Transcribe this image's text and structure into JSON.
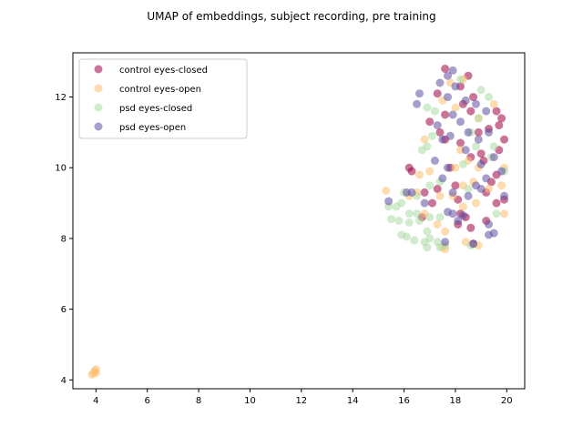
{
  "chart_data": {
    "type": "scatter",
    "title": "UMAP of embeddings, subject recording, pre training",
    "xlabel": "",
    "ylabel": "",
    "xlim": [
      3.1,
      20.7
    ],
    "ylim": [
      3.75,
      13.25
    ],
    "xticks": [
      4,
      6,
      8,
      10,
      12,
      14,
      16,
      18,
      20
    ],
    "yticks": [
      4,
      6,
      8,
      10,
      12
    ],
    "grid": false,
    "legend_position": "top-left",
    "series": [
      {
        "name": "control eyes-closed",
        "color": "#9e0142",
        "points": [
          [
            17.6,
            12.8
          ],
          [
            18.5,
            12.6
          ],
          [
            18.2,
            12.3
          ],
          [
            17.3,
            12.1
          ],
          [
            18.7,
            12.0
          ],
          [
            18.3,
            11.8
          ],
          [
            18.6,
            11.6
          ],
          [
            19.6,
            11.6
          ],
          [
            17.6,
            11.5
          ],
          [
            19.8,
            11.4
          ],
          [
            19.7,
            11.2
          ],
          [
            19.3,
            11.1
          ],
          [
            17.0,
            11.3
          ],
          [
            18.9,
            11.0
          ],
          [
            17.4,
            11.0
          ],
          [
            17.6,
            10.8
          ],
          [
            19.9,
            10.8
          ],
          [
            18.2,
            10.7
          ],
          [
            19.7,
            10.5
          ],
          [
            19.0,
            10.4
          ],
          [
            18.6,
            10.3
          ],
          [
            19.1,
            10.2
          ],
          [
            17.8,
            10.0
          ],
          [
            16.2,
            10.0
          ],
          [
            16.3,
            9.9
          ],
          [
            19.6,
            9.8
          ],
          [
            19.4,
            9.6
          ],
          [
            18.0,
            9.5
          ],
          [
            17.3,
            9.4
          ],
          [
            19.2,
            9.3
          ],
          [
            16.8,
            9.3
          ],
          [
            18.1,
            9.1
          ],
          [
            17.1,
            9.0
          ],
          [
            19.6,
            9.0
          ],
          [
            19.9,
            9.1
          ],
          [
            18.2,
            8.7
          ],
          [
            18.4,
            8.6
          ],
          [
            16.7,
            8.6
          ],
          [
            18.1,
            8.4
          ],
          [
            18.6,
            8.3
          ],
          [
            19.2,
            8.5
          ],
          [
            18.7,
            7.85
          ]
        ]
      },
      {
        "name": "control eyes-open",
        "color": "#fdbf6f",
        "points": [
          [
            3.9,
            4.2
          ],
          [
            4.0,
            4.3
          ],
          [
            3.95,
            4.25
          ],
          [
            3.85,
            4.15
          ],
          [
            4.0,
            4.2
          ],
          [
            18.3,
            12.5
          ],
          [
            17.8,
            12.4
          ],
          [
            17.5,
            11.9
          ],
          [
            19.5,
            11.8
          ],
          [
            18.0,
            11.7
          ],
          [
            18.9,
            11.4
          ],
          [
            16.8,
            10.8
          ],
          [
            18.2,
            10.5
          ],
          [
            18.5,
            10.2
          ],
          [
            18.9,
            10.0
          ],
          [
            18.0,
            10.0
          ],
          [
            17.0,
            9.9
          ],
          [
            16.6,
            9.8
          ],
          [
            18.7,
            9.6
          ],
          [
            18.3,
            9.5
          ],
          [
            17.9,
            9.2
          ],
          [
            17.4,
            9.2
          ],
          [
            16.5,
            9.3
          ],
          [
            16.2,
            9.2
          ],
          [
            15.3,
            9.35
          ],
          [
            19.8,
            9.5
          ],
          [
            19.9,
            10.0
          ],
          [
            19.3,
            9.4
          ],
          [
            18.8,
            9.0
          ],
          [
            18.3,
            8.9
          ],
          [
            19.9,
            8.7
          ],
          [
            16.8,
            8.7
          ],
          [
            17.3,
            8.4
          ],
          [
            17.6,
            8.2
          ],
          [
            18.4,
            7.9
          ],
          [
            18.9,
            7.8
          ],
          [
            17.5,
            7.75
          ],
          [
            17.6,
            7.7
          ]
        ]
      },
      {
        "name": "psd eyes-closed",
        "color": "#abdda4",
        "points": [
          [
            18.2,
            12.5
          ],
          [
            19.0,
            12.2
          ],
          [
            19.3,
            12.0
          ],
          [
            16.9,
            11.7
          ],
          [
            17.2,
            11.6
          ],
          [
            18.9,
            11.4
          ],
          [
            18.6,
            11.0
          ],
          [
            17.1,
            10.9
          ],
          [
            18.8,
            10.6
          ],
          [
            16.9,
            10.6
          ],
          [
            19.5,
            10.6
          ],
          [
            16.7,
            10.5
          ],
          [
            19.4,
            10.3
          ],
          [
            18.3,
            10.1
          ],
          [
            19.9,
            9.9
          ],
          [
            17.4,
            9.6
          ],
          [
            17.0,
            9.5
          ],
          [
            18.5,
            9.4
          ],
          [
            16.0,
            9.3
          ],
          [
            16.5,
            9.2
          ],
          [
            15.9,
            9.0
          ],
          [
            15.4,
            8.9
          ],
          [
            15.7,
            8.9
          ],
          [
            16.2,
            8.7
          ],
          [
            16.5,
            8.7
          ],
          [
            17.4,
            8.6
          ],
          [
            17.0,
            8.6
          ],
          [
            16.6,
            8.5
          ],
          [
            15.5,
            8.55
          ],
          [
            15.8,
            8.5
          ],
          [
            16.2,
            8.45
          ],
          [
            19.6,
            8.7
          ],
          [
            16.9,
            8.2
          ],
          [
            17.0,
            8.0
          ],
          [
            16.8,
            7.9
          ],
          [
            17.3,
            7.9
          ],
          [
            17.6,
            7.8
          ],
          [
            16.4,
            7.95
          ],
          [
            15.9,
            8.1
          ],
          [
            16.1,
            8.05
          ],
          [
            16.9,
            7.75
          ],
          [
            17.4,
            7.75
          ],
          [
            18.6,
            7.8
          ]
        ]
      },
      {
        "name": "psd eyes-open",
        "color": "#5e4fa2",
        "points": [
          [
            17.9,
            12.75
          ],
          [
            17.7,
            12.6
          ],
          [
            18.0,
            12.3
          ],
          [
            17.4,
            12.4
          ],
          [
            16.6,
            12.1
          ],
          [
            16.5,
            11.8
          ],
          [
            17.7,
            12.0
          ],
          [
            18.4,
            11.9
          ],
          [
            18.8,
            11.8
          ],
          [
            19.2,
            11.6
          ],
          [
            17.3,
            11.2
          ],
          [
            17.9,
            11.5
          ],
          [
            18.2,
            11.3
          ],
          [
            17.8,
            10.9
          ],
          [
            19.3,
            11.0
          ],
          [
            18.5,
            11.0
          ],
          [
            18.9,
            10.8
          ],
          [
            17.5,
            10.8
          ],
          [
            18.4,
            10.5
          ],
          [
            17.2,
            10.2
          ],
          [
            17.7,
            10.0
          ],
          [
            19.0,
            10.1
          ],
          [
            19.5,
            10.3
          ],
          [
            19.8,
            9.9
          ],
          [
            17.5,
            9.7
          ],
          [
            19.2,
            9.7
          ],
          [
            18.8,
            9.5
          ],
          [
            19.0,
            9.4
          ],
          [
            16.3,
            9.3
          ],
          [
            16.1,
            9.3
          ],
          [
            18.5,
            9.2
          ],
          [
            17.9,
            9.3
          ],
          [
            15.4,
            9.05
          ],
          [
            16.8,
            9.0
          ],
          [
            19.9,
            9.2
          ],
          [
            17.7,
            8.75
          ],
          [
            17.9,
            8.7
          ],
          [
            18.3,
            8.65
          ],
          [
            19.3,
            8.4
          ],
          [
            18.1,
            8.5
          ],
          [
            19.3,
            8.1
          ],
          [
            19.5,
            8.15
          ],
          [
            18.7,
            7.85
          ],
          [
            17.6,
            7.9
          ]
        ]
      }
    ]
  }
}
